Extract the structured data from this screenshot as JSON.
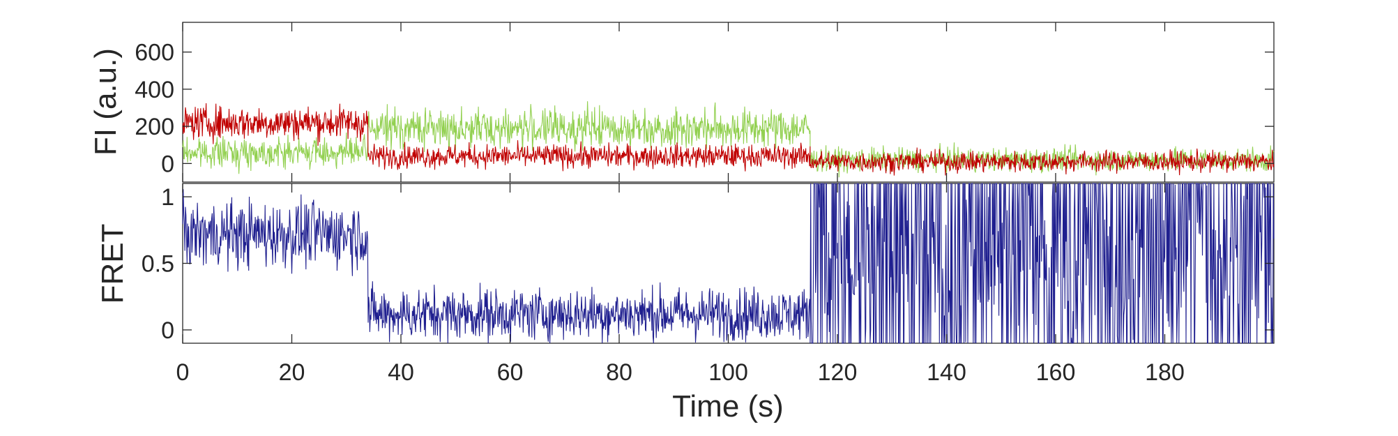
{
  "chart_data": [
    {
      "type": "line",
      "panel": "top",
      "ylabel": "FI (a.u.)",
      "xlabel": "",
      "xlim": [
        0,
        200
      ],
      "ylim": [
        -100,
        760
      ],
      "yticks": [
        0,
        200,
        400,
        600
      ],
      "grid": false,
      "series": [
        {
          "color": "#92D050",
          "segments": [
            {
              "t0": 0,
              "t1": 34,
              "mean": 60,
              "noise": 55
            },
            {
              "t0": 34,
              "t1": 115,
              "mean": 190,
              "noise": 75
            },
            {
              "t0": 115,
              "t1": 200,
              "mean": 20,
              "noise": 45
            }
          ]
        },
        {
          "color": "#C00000",
          "segments": [
            {
              "t0": 0,
              "t1": 34,
              "mean": 220,
              "noise": 65
            },
            {
              "t0": 34,
              "t1": 115,
              "mean": 40,
              "noise": 45
            },
            {
              "t0": 115,
              "t1": 200,
              "mean": 10,
              "noise": 40
            }
          ]
        }
      ]
    },
    {
      "type": "line",
      "panel": "bottom",
      "ylabel": "FRET",
      "xlabel": "Time (s)",
      "xlim": [
        0,
        200
      ],
      "ylim": [
        -0.1,
        1.1
      ],
      "yticks": [
        0,
        0.5,
        1
      ],
      "xticks": [
        0,
        20,
        40,
        60,
        80,
        100,
        120,
        140,
        160,
        180
      ],
      "grid": false,
      "series": [
        {
          "color": "#1F1F8F",
          "segments": [
            {
              "t0": 0,
              "t1": 34,
              "mean": 0.72,
              "noise": 0.18
            },
            {
              "t0": 34,
              "t1": 115,
              "mean": 0.12,
              "noise": 0.14
            },
            {
              "t0": 115,
              "t1": 200,
              "mean": 0.5,
              "noise": 0.5
            }
          ]
        }
      ]
    }
  ],
  "labels": {
    "top_ylabel": "FI (a.u.)",
    "bottom_ylabel": "FRET",
    "xlabel": "Time (s)"
  }
}
